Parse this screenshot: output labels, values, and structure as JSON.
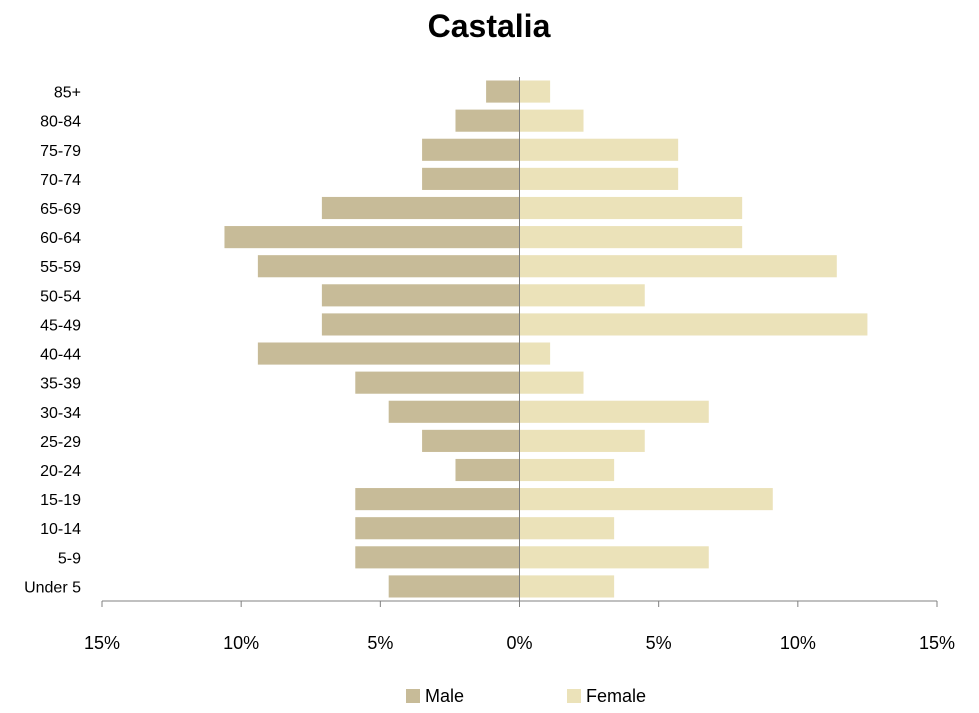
{
  "chart_data": {
    "type": "bar",
    "orientation": "horizontal",
    "title": "Castalia",
    "categories": [
      "Under 5",
      "5-9",
      "10-14",
      "15-19",
      "20-24",
      "25-29",
      "30-34",
      "35-39",
      "40-44",
      "45-49",
      "50-54",
      "55-59",
      "60-64",
      "65-69",
      "70-74",
      "75-79",
      "80-84",
      "85+"
    ],
    "series": [
      {
        "name": "Male",
        "color": "#c7bb98",
        "values": [
          4.7,
          5.9,
          5.9,
          5.9,
          2.3,
          3.5,
          4.7,
          5.9,
          9.4,
          7.1,
          7.1,
          9.4,
          10.6,
          7.1,
          3.5,
          3.5,
          2.3,
          1.2
        ]
      },
      {
        "name": "Female",
        "color": "#ebe2b9",
        "values": [
          3.4,
          6.8,
          3.4,
          9.1,
          3.4,
          4.5,
          6.8,
          2.3,
          1.1,
          12.5,
          4.5,
          11.4,
          8.0,
          8.0,
          5.7,
          5.7,
          2.3,
          1.1
        ]
      }
    ],
    "xlim": [
      -15,
      15
    ],
    "x_ticks": [
      -15,
      -10,
      -5,
      0,
      5,
      10,
      15
    ],
    "x_tick_labels": [
      "15%",
      "10%",
      "5%",
      "0%",
      "5%",
      "10%",
      "15%"
    ],
    "xlabel": "",
    "ylabel": "",
    "grid": false,
    "legend_position": "bottom"
  }
}
